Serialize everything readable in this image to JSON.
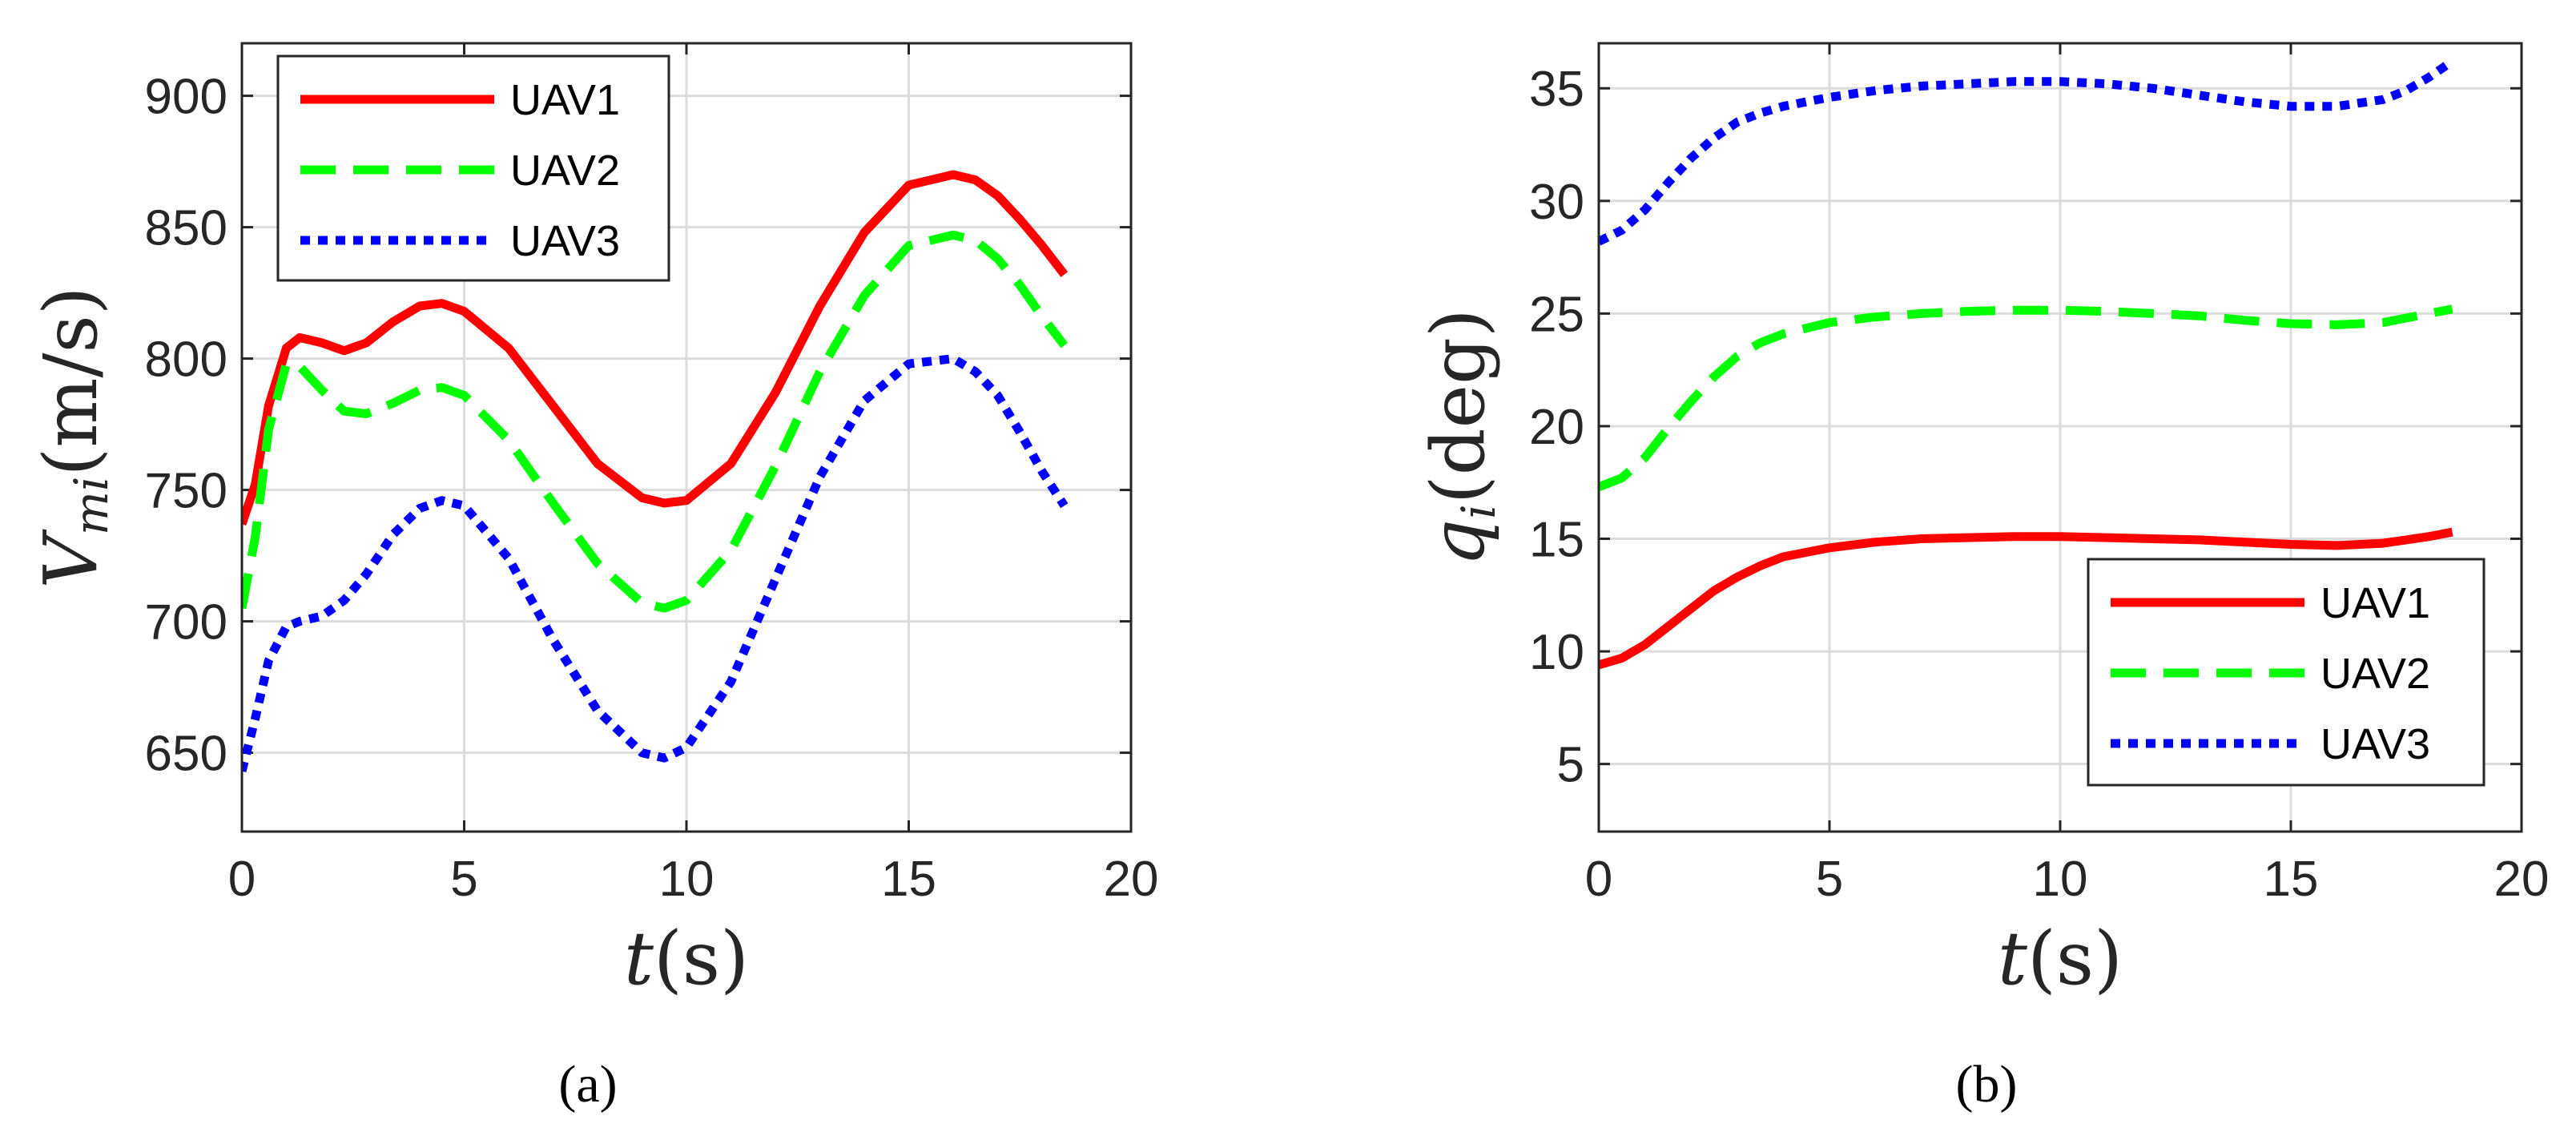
{
  "chart_data": [
    {
      "panel_label": "(a)",
      "type": "line",
      "xlabel": {
        "var": "t",
        "rest": "(s)"
      },
      "ylabel": {
        "var": "V",
        "sub": "mi",
        "rest": "(m/s)"
      },
      "xlim": [
        0,
        20
      ],
      "ylim": [
        620,
        920
      ],
      "xticks": [
        0,
        5,
        10,
        15,
        20
      ],
      "yticks": [
        650,
        700,
        750,
        800,
        850,
        900
      ],
      "grid": true,
      "legend_position": "top-left",
      "series": [
        {
          "name": "UAV1",
          "color": "#ff0000",
          "style": "solid",
          "x": [
            0,
            0.3,
            0.6,
            1.0,
            1.3,
            1.8,
            2.3,
            2.8,
            3.4,
            4.0,
            4.5,
            5.0,
            6.0,
            7.0,
            8.0,
            9.0,
            9.5,
            10.0,
            11.0,
            12.0,
            13.0,
            14.0,
            15.0,
            16.0,
            16.5,
            17.0,
            17.5,
            18.0,
            18.5
          ],
          "y": [
            737,
            752,
            782,
            804,
            808,
            806,
            803,
            806,
            814,
            820,
            821,
            818,
            804,
            782,
            760,
            747,
            745,
            746,
            760,
            787,
            820,
            848,
            866,
            870,
            868,
            862,
            853,
            843,
            832
          ]
        },
        {
          "name": "UAV2",
          "color": "#00ff00",
          "style": "dashed",
          "x": [
            0,
            0.3,
            0.6,
            1.0,
            1.3,
            1.8,
            2.3,
            2.8,
            3.4,
            4.0,
            4.5,
            5.0,
            6.0,
            7.0,
            8.0,
            9.0,
            9.5,
            10.0,
            11.0,
            12.0,
            13.0,
            14.0,
            15.0,
            16.0,
            16.5,
            17.0,
            17.5,
            18.0,
            18.5
          ],
          "y": [
            705,
            732,
            773,
            798,
            797,
            788,
            780,
            779,
            783,
            788,
            789,
            786,
            769,
            745,
            722,
            707,
            705,
            708,
            727,
            759,
            795,
            824,
            843,
            847,
            845,
            838,
            828,
            816,
            805
          ]
        },
        {
          "name": "UAV3",
          "color": "#0000ff",
          "style": "dotted",
          "x": [
            0,
            0.3,
            0.6,
            1.0,
            1.3,
            1.8,
            2.3,
            2.8,
            3.4,
            4.0,
            4.5,
            5.0,
            6.0,
            7.0,
            8.0,
            9.0,
            9.5,
            10.0,
            11.0,
            12.0,
            13.0,
            14.0,
            15.0,
            16.0,
            16.5,
            17.0,
            17.5,
            18.0,
            18.5
          ],
          "y": [
            643,
            663,
            685,
            698,
            700,
            702,
            708,
            718,
            733,
            743,
            746,
            744,
            724,
            693,
            666,
            650,
            648,
            652,
            677,
            716,
            755,
            784,
            798,
            800,
            795,
            786,
            772,
            757,
            744
          ]
        }
      ]
    },
    {
      "panel_label": "(b)",
      "type": "line",
      "xlabel": {
        "var": "t",
        "rest": "(s)"
      },
      "ylabel": {
        "var": "q",
        "sub": "i",
        "rest": "(deg)"
      },
      "xlim": [
        0,
        20
      ],
      "ylim": [
        2,
        37
      ],
      "xticks": [
        0,
        5,
        10,
        15,
        20
      ],
      "yticks": [
        5,
        10,
        15,
        20,
        25,
        30,
        35
      ],
      "grid": true,
      "legend_position": "bottom-right",
      "series": [
        {
          "name": "UAV1",
          "color": "#ff0000",
          "style": "solid",
          "x": [
            0,
            0.5,
            1,
            1.5,
            2,
            2.5,
            3,
            3.5,
            4,
            5,
            6,
            7,
            8,
            9,
            10,
            11,
            12,
            13,
            14,
            15,
            16,
            17,
            17.5,
            18,
            18.5
          ],
          "y": [
            9.4,
            9.7,
            10.3,
            11.1,
            11.9,
            12.7,
            13.3,
            13.8,
            14.2,
            14.6,
            14.85,
            15.0,
            15.05,
            15.1,
            15.1,
            15.05,
            15.0,
            14.95,
            14.85,
            14.75,
            14.7,
            14.8,
            14.95,
            15.1,
            15.3
          ]
        },
        {
          "name": "UAV2",
          "color": "#00ff00",
          "style": "dashed",
          "x": [
            0,
            0.5,
            1,
            1.5,
            2,
            2.5,
            3,
            3.5,
            4,
            5,
            6,
            7,
            8,
            9,
            10,
            11,
            12,
            13,
            14,
            15,
            16,
            17,
            17.5,
            18,
            18.5
          ],
          "y": [
            17.3,
            17.7,
            18.6,
            19.9,
            21.1,
            22.2,
            23.1,
            23.7,
            24.1,
            24.6,
            24.85,
            25.0,
            25.1,
            25.15,
            25.15,
            25.1,
            25.0,
            24.9,
            24.7,
            24.55,
            24.5,
            24.6,
            24.8,
            25.0,
            25.2
          ]
        },
        {
          "name": "UAV3",
          "color": "#0000ff",
          "style": "dotted",
          "x": [
            0,
            0.5,
            1,
            1.5,
            2,
            2.5,
            3,
            3.5,
            4,
            5,
            6,
            7,
            8,
            9,
            10,
            11,
            12,
            13,
            14,
            15,
            16,
            17,
            17.5,
            18,
            18.5
          ],
          "y": [
            28.2,
            28.7,
            29.6,
            30.8,
            31.9,
            32.8,
            33.5,
            33.9,
            34.2,
            34.6,
            34.9,
            35.1,
            35.2,
            35.3,
            35.3,
            35.2,
            35.0,
            34.7,
            34.4,
            34.2,
            34.2,
            34.5,
            34.9,
            35.5,
            36.2
          ]
        }
      ]
    }
  ]
}
